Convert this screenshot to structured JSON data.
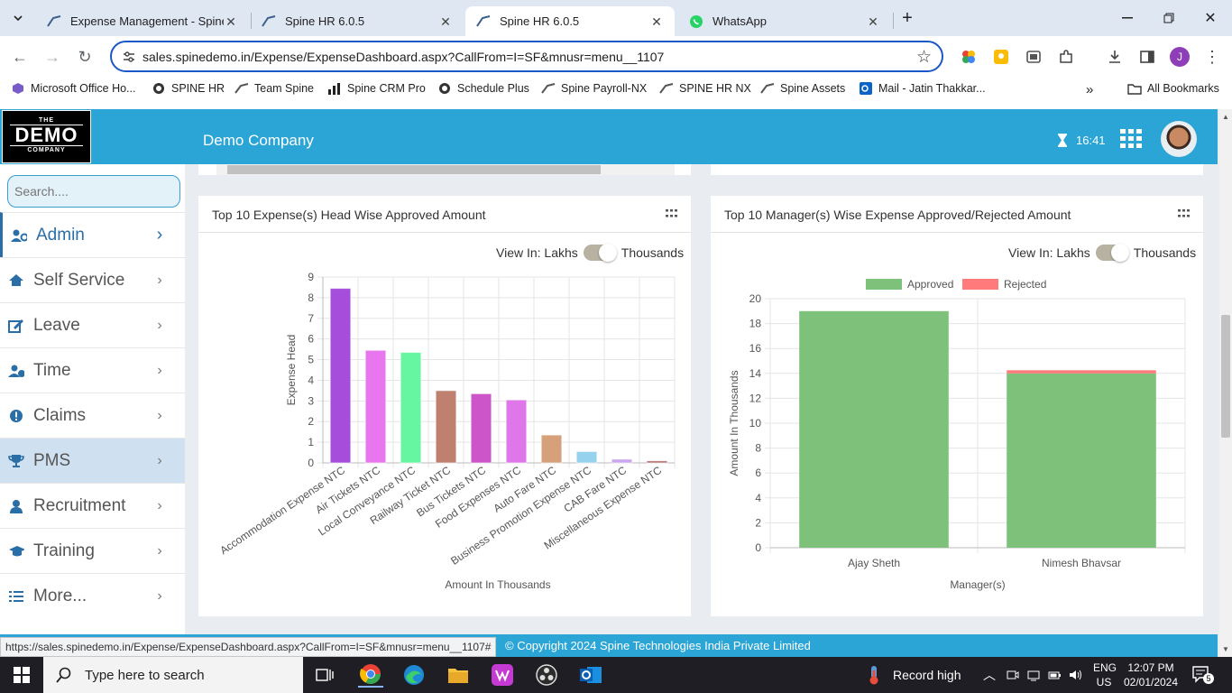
{
  "browser": {
    "tabs": [
      {
        "label": "Expense Management - Spine T",
        "icon": "spine-icon",
        "active": false
      },
      {
        "label": "Spine HR 6.0.5",
        "icon": "spine-icon",
        "active": false
      },
      {
        "label": "Spine HR 6.0.5",
        "icon": "spine-icon",
        "active": true
      },
      {
        "label": "WhatsApp",
        "icon": "whatsapp-icon",
        "active": false
      }
    ],
    "url": "sales.spinedemo.in/Expense/ExpenseDashboard.aspx?CallFrom=I=SF&mnusr=menu__1107",
    "bookmarks": [
      "Microsoft Office Ho...",
      "SPINE HR",
      "Team Spine",
      "Spine CRM Pro",
      "Schedule Plus",
      "Spine Payroll-NX",
      "SPINE HR NX",
      "Spine Assets",
      "Mail - Jatin Thakkar..."
    ],
    "all_bookmarks": "All Bookmarks",
    "profile_initial": "J",
    "status_url": "https://sales.spinedemo.in/Expense/ExpenseDashboard.aspx?CallFrom=I=SF&mnusr=menu__1107#"
  },
  "app": {
    "logo": {
      "line1": "THE",
      "line2": "DEMO",
      "line3": "COMPANY"
    },
    "company": "Demo Company",
    "time": "16:41",
    "search_placeholder": "Search....",
    "menu": [
      {
        "label": "Admin",
        "icon": "users-cog-icon"
      },
      {
        "label": "Self Service",
        "icon": "home-icon"
      },
      {
        "label": "Leave",
        "icon": "edit-icon"
      },
      {
        "label": "Time",
        "icon": "user-clock-icon"
      },
      {
        "label": "Claims",
        "icon": "exclamation-icon"
      },
      {
        "label": "PMS",
        "icon": "trophy-icon"
      },
      {
        "label": "Recruitment",
        "icon": "user-tie-icon"
      },
      {
        "label": "Training",
        "icon": "graduation-cap-icon"
      },
      {
        "label": "More...",
        "icon": "list-icon"
      }
    ],
    "view_in": {
      "label": "View In: Lakhs",
      "right": "Thousands"
    },
    "footer": "© Copyright 2024 Spine Technologies India Private Limited"
  },
  "chart_data": [
    {
      "type": "bar",
      "title": "Top 10 Expense(s) Head Wise Approved Amount",
      "xlabel": "Amount In Thousands",
      "ylabel": "Expense Head",
      "ylim": [
        0,
        9
      ],
      "yticks": [
        "0",
        "1",
        "2",
        "3",
        "4",
        "5",
        "6",
        "7",
        "8",
        "9"
      ],
      "categories": [
        "Accommodation Expense NTC",
        "Air Tickets NTC",
        "Local Conveyance NTC",
        "Railway Ticket NTC",
        "Bus Tickets NTC",
        "Food Expenses NTC",
        "Auto Fare NTC",
        "Business Promotion Expense NTC",
        "CAB Fare NTC",
        "Miscellaneous Expense NTC"
      ],
      "values": [
        8.45,
        5.45,
        5.35,
        3.5,
        3.35,
        3.05,
        1.35,
        0.55,
        0.18,
        0.1
      ],
      "colors": [
        "#a64ddb",
        "#e876ef",
        "#66f5a0",
        "#c08070",
        "#cc55c9",
        "#df77eb",
        "#d6a07a",
        "#96d1ee",
        "#c9a6ef",
        "#b06e68"
      ],
      "grid": true
    },
    {
      "type": "bar",
      "title": "Top 10 Manager(s) Wise Expense Approved/Rejected Amount",
      "xlabel": "Manager(s)",
      "ylabel": "Amount In Thousands",
      "ylim": [
        0,
        20
      ],
      "yticks": [
        "0",
        "2",
        "4",
        "6",
        "8",
        "10",
        "12",
        "14",
        "16",
        "18",
        "20"
      ],
      "categories": [
        "Ajay Sheth",
        "Nimesh Bhavsar"
      ],
      "stacked": true,
      "legend_position": "top",
      "series": [
        {
          "name": "Approved",
          "color": "#7dc17a",
          "values": [
            19.0,
            14.0
          ]
        },
        {
          "name": "Rejected",
          "color": "#ff7b7b",
          "values": [
            0,
            0.25
          ]
        }
      ],
      "grid": true
    }
  ],
  "taskbar": {
    "search_placeholder": "Type here to search",
    "weather": "Record high",
    "lang1": "ENG",
    "lang2": "US",
    "time": "12:07 PM",
    "date": "02/01/2024",
    "notif_count": "5"
  }
}
